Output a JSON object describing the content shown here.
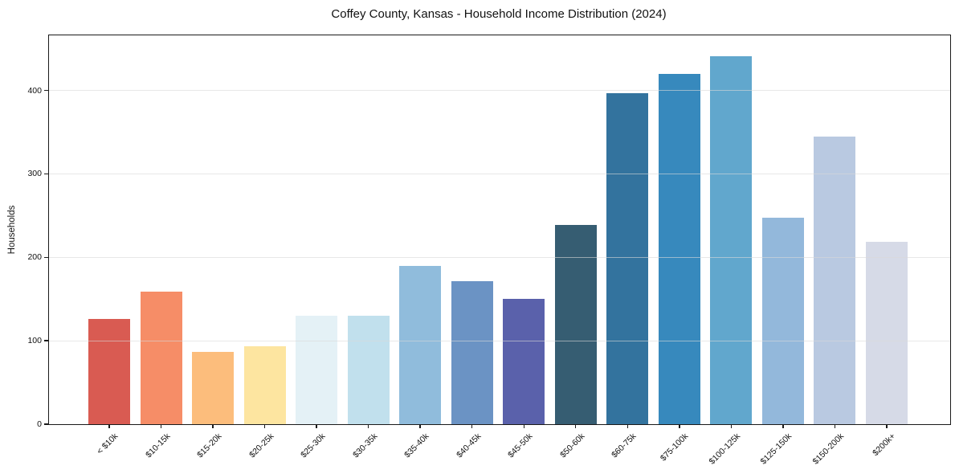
{
  "figure": {
    "background": "#ffffff"
  },
  "chart_data": {
    "type": "bar",
    "title": "Coffey County, Kansas - Household Income Distribution (2024)",
    "xlabel": "",
    "ylabel": "Households",
    "categories": [
      "< $10k",
      "$10-15k",
      "$15-20k",
      "$20-25k",
      "$25-30k",
      "$30-35k",
      "$35-40k",
      "$40-45k",
      "$45-50k",
      "$50-60k",
      "$60-75k",
      "$75-100k",
      "$100-125k",
      "$125-150k",
      "$150-200k",
      "$200k+"
    ],
    "values": [
      126,
      159,
      87,
      93,
      130,
      130,
      190,
      171,
      150,
      239,
      397,
      420,
      441,
      247,
      345,
      219
    ],
    "bar_colors": [
      "#d95b52",
      "#f68d67",
      "#fcbd7c",
      "#fde5a0",
      "#e4f1f6",
      "#c1e0ed",
      "#90bcdc",
      "#6b93c4",
      "#5a61ab",
      "#365d72",
      "#33739e",
      "#3789bd",
      "#61a7cd",
      "#93b8db",
      "#b9c9e1",
      "#d6dae7"
    ],
    "yticks": [
      0,
      100,
      200,
      300,
      400
    ],
    "ylim": [
      0,
      466
    ],
    "grid": "horizontal",
    "legend": "none",
    "x_tick_rotation_deg": 45
  },
  "style": {
    "spine_color": "#1a1a1a",
    "grid_color": "#d9d9d9",
    "tick_label_color": "#111111"
  }
}
